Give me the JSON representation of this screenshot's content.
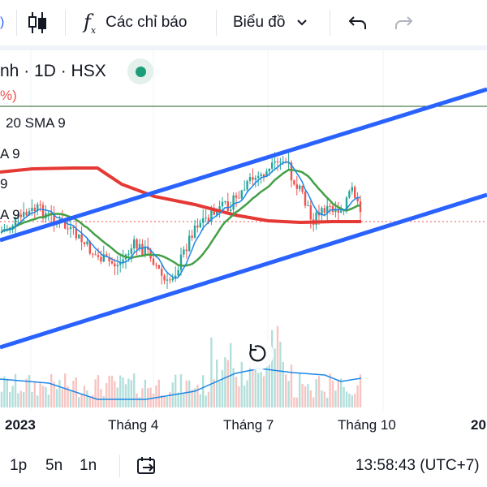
{
  "toolbar": {
    "indicators_label": "Các chỉ báo",
    "chart_type_label": "Biểu đồ"
  },
  "legend": {
    "symbol_partial": "nh · 1D · HSX",
    "pct_partial": "%)",
    "line_20_sma": "20 SMA 9",
    "line_a": "A 9",
    "line_9": "9",
    "line_a2": "A 9"
  },
  "time_axis": {
    "labels": [
      "2023",
      "Tháng 4",
      "Tháng 7",
      "Tháng 10",
      "20"
    ]
  },
  "bottom": {
    "range_1d": "1p",
    "range_5d": "5n",
    "range_1n": "1n",
    "clock": "13:58:43 (UTC+7)"
  },
  "colors": {
    "up": "#26a69a",
    "down": "#ef5350",
    "channel": "#2962ff",
    "sma_red": "#e53935",
    "sma_green": "#43a047",
    "sma_blue": "#1e88e5"
  }
}
